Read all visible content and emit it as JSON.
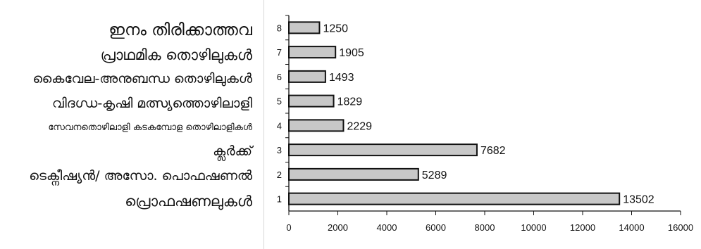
{
  "chart_data": {
    "type": "bar",
    "orientation": "horizontal",
    "categories": [
      "1",
      "2",
      "3",
      "4",
      "5",
      "6",
      "7",
      "8"
    ],
    "category_names": [
      "പ്രൊഫഷണലുകൾ",
      "ടെക്നീഷ്യൻ/ അസോ. പൊഫഷണൽ",
      "ക്ലർക്ക്",
      "സേവനതൊഴിലാളി കടകമ്പോള തൊഴിലാളികൾ",
      "വിദഗ്ധ-കൃഷി മത്സ്യത്തൊഴിലാളി",
      "കൈവേല-അനുബന്ധ തൊഴിലുകൾ",
      "പ്രാഥമിക തൊഴിലുകൾ",
      "ഇനം തിരിക്കാത്തവ"
    ],
    "values": [
      13502,
      5289,
      7682,
      2229,
      1829,
      1493,
      1905,
      1250
    ],
    "data_labels": [
      "13502",
      "5289",
      "7682",
      "2229",
      "1829",
      "1493",
      "1905",
      "1250"
    ],
    "xlim": [
      0,
      16000
    ],
    "xticks": [
      "0",
      "2000",
      "4000",
      "6000",
      "8000",
      "10000",
      "12000",
      "14000",
      "16000"
    ],
    "grid": false,
    "bar_color": "#c8c8c8",
    "bar_edge_color": "#111111"
  }
}
